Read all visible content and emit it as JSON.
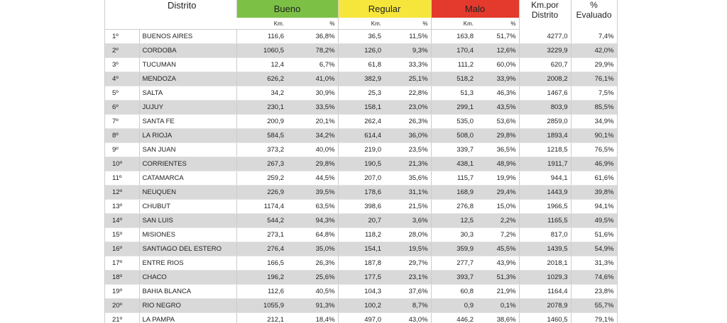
{
  "header": {
    "distrito": "Distrito",
    "bueno": "Bueno",
    "regular": "Regular",
    "malo": "Malo",
    "km_por_distrito": "Km.por Distrito",
    "pct_evaluado": "% Evaluado"
  },
  "subheader": [
    "Km.",
    "%",
    "Km.",
    "%",
    "Km.",
    "%"
  ],
  "rows": [
    [
      "1º",
      "BUENOS AIRES",
      "116,6",
      "36,8%",
      "36,5",
      "11,5%",
      "163,8",
      "51,7%",
      "4277,0",
      "7,4%"
    ],
    [
      "2º",
      "CORDOBA",
      "1060,5",
      "78,2%",
      "126,0",
      "9,3%",
      "170,4",
      "12,6%",
      "3229,9",
      "42,0%"
    ],
    [
      "3º",
      "TUCUMAN",
      "12,4",
      "6,7%",
      "61,8",
      "33,3%",
      "111,2",
      "60,0%",
      "620,7",
      "29,9%"
    ],
    [
      "4º",
      "MENDOZA",
      "626,2",
      "41,0%",
      "382,9",
      "25,1%",
      "518,2",
      "33,9%",
      "2008,2",
      "76,1%"
    ],
    [
      "5º",
      "SALTA",
      "34,2",
      "30,9%",
      "25,3",
      "22,8%",
      "51,3",
      "46,3%",
      "1467,6",
      "7,5%"
    ],
    [
      "6º",
      "JUJUY",
      "230,1",
      "33,5%",
      "158,1",
      "23,0%",
      "299,1",
      "43,5%",
      "803,9",
      "85,5%"
    ],
    [
      "7º",
      "SANTA FE",
      "200,9",
      "20,1%",
      "262,4",
      "26,3%",
      "535,0",
      "53,6%",
      "2859,0",
      "34,9%"
    ],
    [
      "8º",
      "LA RIOJA",
      "584,5",
      "34,2%",
      "614,4",
      "36,0%",
      "508,0",
      "29,8%",
      "1893,4",
      "90,1%"
    ],
    [
      "9º",
      "SAN JUAN",
      "373,2",
      "40,0%",
      "219,0",
      "23,5%",
      "339,7",
      "36,5%",
      "1218,5",
      "76,5%"
    ],
    [
      "10º",
      "CORRIENTES",
      "267,3",
      "29,8%",
      "190,5",
      "21,3%",
      "438,1",
      "48,9%",
      "1911,7",
      "46,9%"
    ],
    [
      "11º",
      "CATAMARCA",
      "259,2",
      "44,5%",
      "207,0",
      "35,6%",
      "115,7",
      "19,9%",
      "944,1",
      "61,6%"
    ],
    [
      "12º",
      "NEUQUEN",
      "226,9",
      "39,5%",
      "178,6",
      "31,1%",
      "168,9",
      "29,4%",
      "1443,9",
      "39,8%"
    ],
    [
      "13º",
      "CHUBUT",
      "1174,4",
      "63,5%",
      "398,6",
      "21,5%",
      "276,8",
      "15,0%",
      "1966,5",
      "94,1%"
    ],
    [
      "14º",
      "SAN LUIS",
      "544,2",
      "94,3%",
      "20,7",
      "3,6%",
      "12,5",
      "2,2%",
      "1165,5",
      "49,5%"
    ],
    [
      "15º",
      "MISIONES",
      "273,1",
      "64,8%",
      "118,2",
      "28,0%",
      "30,3",
      "7,2%",
      "817,0",
      "51,6%"
    ],
    [
      "16º",
      "SANTIAGO DEL ESTERO",
      "276,4",
      "35,0%",
      "154,1",
      "19,5%",
      "359,9",
      "45,5%",
      "1439,5",
      "54,9%"
    ],
    [
      "17º",
      "ENTRE RIOS",
      "166,5",
      "26,3%",
      "187,8",
      "29,7%",
      "277,7",
      "43,9%",
      "2018,1",
      "31,3%"
    ],
    [
      "18º",
      "CHACO",
      "196,2",
      "25,6%",
      "177,5",
      "23,1%",
      "393,7",
      "51,3%",
      "1029,3",
      "74,6%"
    ],
    [
      "19º",
      "BAHIA BLANCA",
      "112,6",
      "40,5%",
      "104,3",
      "37,6%",
      "60,8",
      "21,9%",
      "1164,4",
      "23,8%"
    ],
    [
      "20º",
      "RIO NEGRO",
      "1055,9",
      "91,3%",
      "100,2",
      "8,7%",
      "0,9",
      "0,1%",
      "2078,9",
      "55,7%"
    ],
    [
      "21º",
      "LA PAMPA",
      "212,1",
      "18,4%",
      "497,0",
      "43,0%",
      "446,2",
      "38,6%",
      "1460,5",
      "79,1%"
    ]
  ]
}
